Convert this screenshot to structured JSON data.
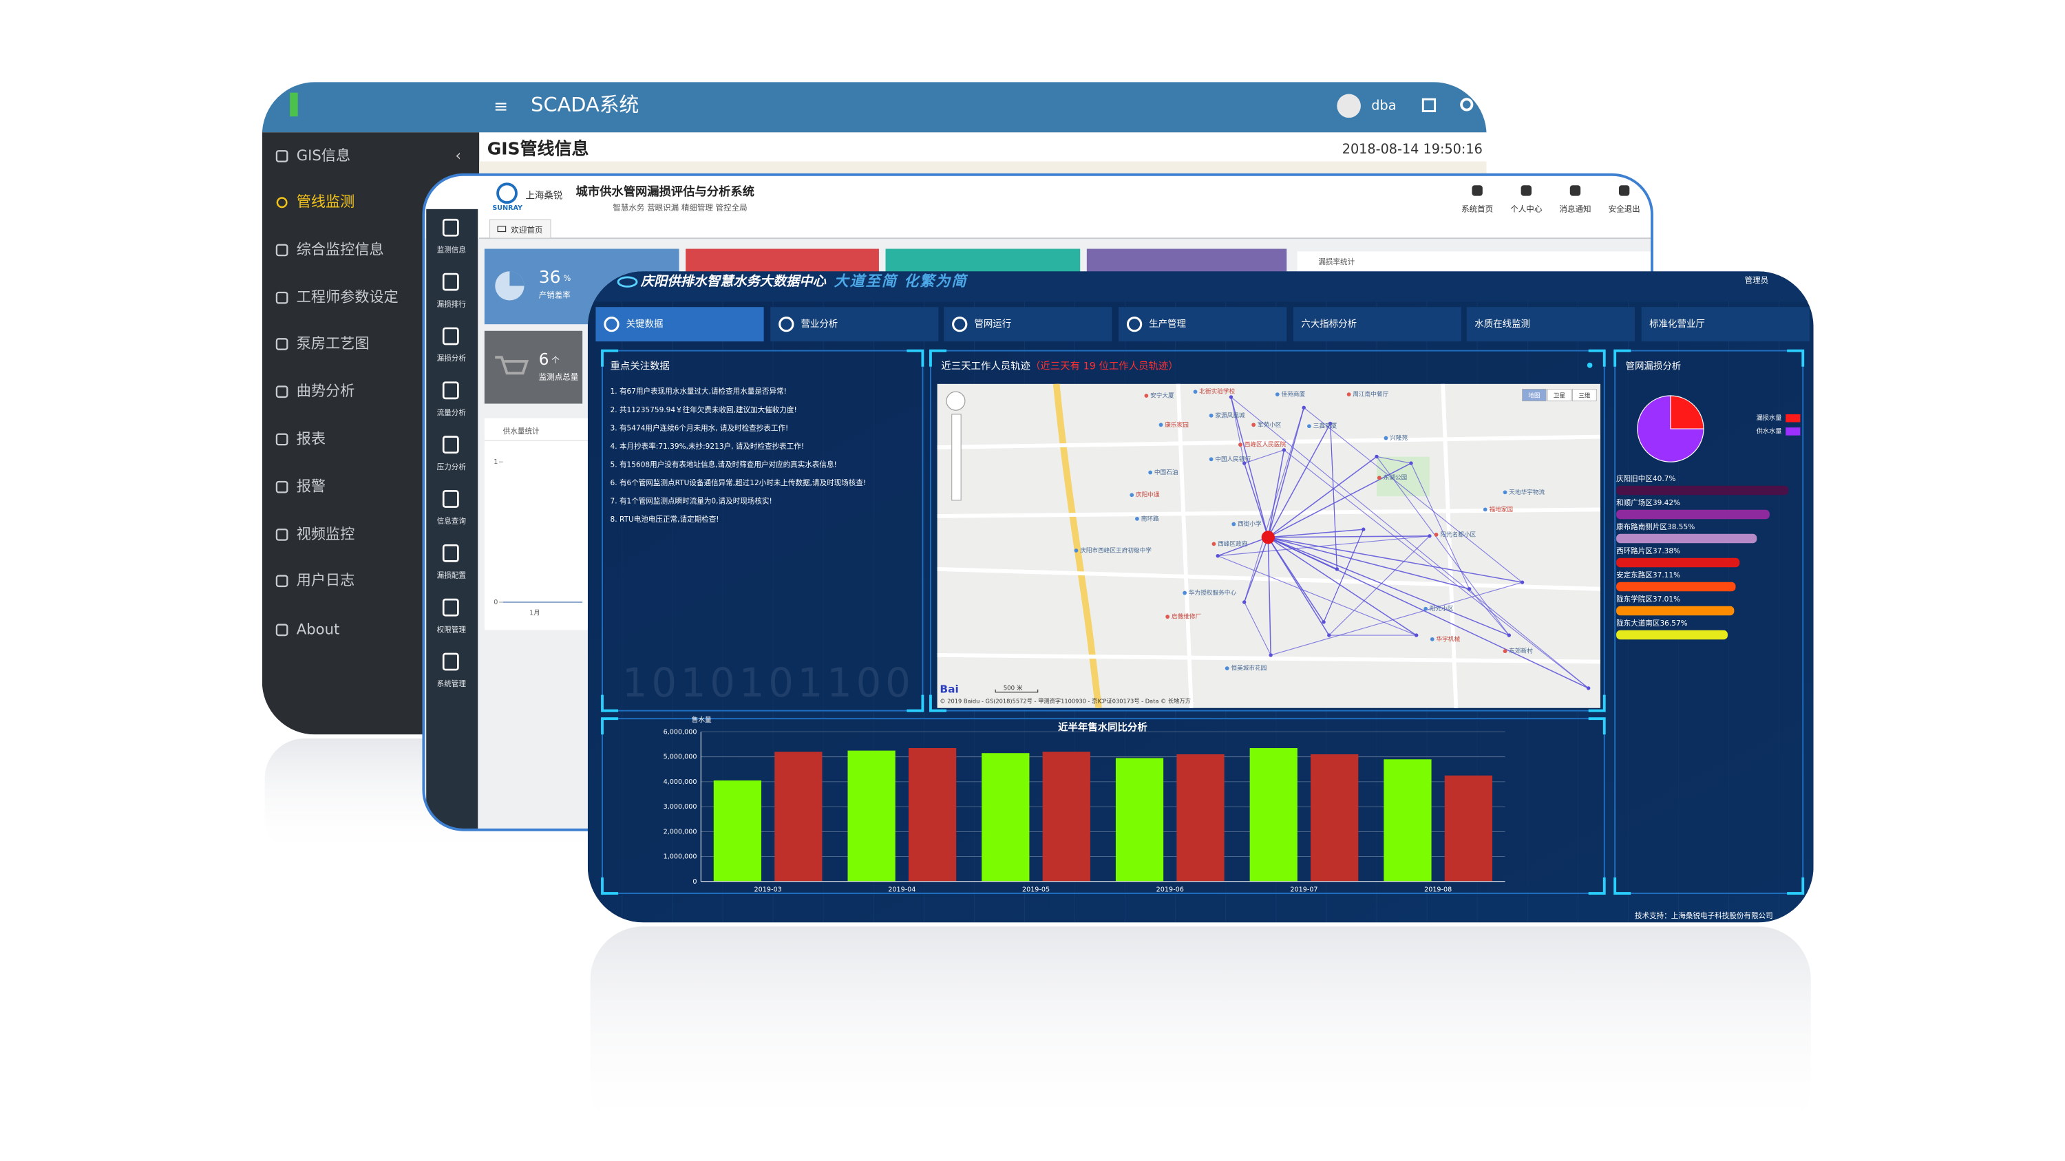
{
  "scada": {
    "title": "SCADA系统",
    "user": "dba",
    "page_title": "GIS管线信息",
    "datetime": "2018-08-14 19:50:16",
    "menu": [
      "GIS信息",
      "管线监测",
      "综合监控信息",
      "工程师参数设定",
      "泵房工艺图",
      "曲势分析",
      "报表",
      "报警",
      "视频监控",
      "用户日志",
      "About"
    ]
  },
  "leakage_system": {
    "brand": "上海桑锐",
    "brand_en": "SUNRAY",
    "title": "城市供水管网漏损评估与分析系统",
    "slogan": "智慧水务 营眼识漏 精细管理 管控全局",
    "nav": [
      "系统首页",
      "个人中心",
      "消息通知",
      "安全退出"
    ],
    "tab": "欢迎首页",
    "menu": [
      "监测信息",
      "漏损排行",
      "漏损分析",
      "流量分析",
      "压力分析",
      "信息查询",
      "漏损配置",
      "权限管理",
      "系统管理"
    ],
    "cards": [
      {
        "value": 36,
        "unit": "%",
        "label": "产销差率"
      },
      {
        "value": 6,
        "unit": "个",
        "label": "监测点总量"
      }
    ],
    "supply_chart": {
      "title": "供水量统计",
      "ylim": [
        0,
        1
      ],
      "yticks": [
        0,
        1
      ],
      "categories": [
        "1月"
      ]
    },
    "leak_title": "漏损率统计"
  },
  "bigdata": {
    "title": "庆阳供排水智慧水务大数据中心",
    "slogan": "大道至简 化繁为简",
    "user": "管理员",
    "tabs": [
      "关键数据",
      "营业分析",
      "管网运行",
      "生产管理",
      "六大指标分析",
      "水质在线监测",
      "标准化营业厅"
    ],
    "focus": {
      "title": "重点关注数据",
      "items": [
        "1. 有67用户表现用水水量过大,请检查用水量是否异常!",
        "2. 共11235759.94￥往年欠费未收回,建议加大催收力度!",
        "3. 有5474用户连续6个月未用水, 请及时检查抄表工作!",
        "4. 本月抄表率:71.39%,未抄:9213户, 请及时检查抄表工作!",
        "5. 有15608用户没有表地址信息,请及时筛查用户对应的真实水表信息!",
        "6. 有6个管网监测点RTU设备通信异常,超过12小时未上传数据,请及时现场核查!",
        "7. 有1个管网监测点瞬时流量为0,请及时现场核实!",
        "8. RTU电池电压正常,请定期检查!"
      ],
      "decor": "1010101100"
    },
    "map": {
      "title": "近三天工作人员轨迹",
      "note": "（近三天有 19 位工作人员轨迹）",
      "types": [
        "地图",
        "卫星",
        "三维"
      ],
      "places": [
        "安宁大厦",
        "北街实验学校",
        "佳苑商厦",
        "周江南中餐厅",
        "家源凤凰城",
        "康乐家园",
        "军苑小区",
        "三鑫商厦",
        "中国石油",
        "西峰区人民医院",
        "兴隆苑",
        "中国人民银行",
        "东湖公园",
        "庆阳中通",
        "天地华宇物流",
        "西峰区政府",
        "西街小学",
        "福地家园",
        "阳光名都小区",
        "南环路",
        "华为授权服务中心",
        "启薇维修厂",
        "庆阳市西峰区王府初级中学",
        "恒美城市花园",
        "东郊新村",
        "华宇机械",
        "阳光小区"
      ],
      "scale": "500 米",
      "copyright": "© 2019 Baidu - GS(2018)5572号 - 甲测资字1100930 - 京ICP证030173号 - Data © 长地万方"
    },
    "footer": "技术支持：上海桑锐电子科技股份有限公司"
  },
  "chart_data": [
    {
      "type": "bar",
      "title": "近半年售水同比分析",
      "y_label": "售水量",
      "categories": [
        "2019-03",
        "2019-04",
        "2019-05",
        "2019-06",
        "2019-07",
        "2019-08"
      ],
      "series": [
        {
          "color": "#7cfc00",
          "values": [
            4050000,
            5250000,
            5150000,
            4950000,
            5350000,
            4900000
          ]
        },
        {
          "color": "#c0302a",
          "values": [
            5200000,
            5350000,
            5200000,
            5100000,
            5100000,
            4250000
          ]
        }
      ],
      "ylim": [
        0,
        6000000
      ],
      "yticks": [
        0,
        {
          "value": 1000000,
          "label": "1,000,000"
        },
        {
          "value": 2000000,
          "label": "2,000,000"
        },
        {
          "value": 3000000,
          "label": "3,000,000"
        },
        {
          "value": 4000000,
          "label": "4,000,000"
        },
        {
          "value": 5000000,
          "label": "5,000,000"
        },
        {
          "value": 6000000,
          "label": "6,000,000"
        }
      ],
      "grid": true
    },
    {
      "type": "pie",
      "title": "管网漏损分析",
      "categories": [
        "漏损水量",
        "供水水量"
      ],
      "values": [
        25,
        75
      ],
      "colors": [
        "#ff1a1a",
        "#9b30ff"
      ]
    },
    {
      "type": "hbar",
      "categories": [
        "庆阳旧中区",
        "和顺广场区",
        "康布路南侧片区",
        "西环路片区",
        "安定东路区",
        "陇东学院区",
        "陇东大道南区"
      ],
      "values": [
        40.7,
        39.42,
        38.55,
        37.38,
        37.11,
        37.01,
        36.57
      ],
      "value_labels": [
        "40.7%",
        "39.42%",
        "38.55%",
        "37.38%",
        "37.11%",
        "37.01%",
        "36.57%"
      ],
      "colors": [
        "#4a1048",
        "#8e2a9e",
        "#b58ac6",
        "#e01818",
        "#ff4a10",
        "#ff8c00",
        "#e6ea1a"
      ],
      "xlim": [
        29,
        41.5
      ]
    }
  ]
}
